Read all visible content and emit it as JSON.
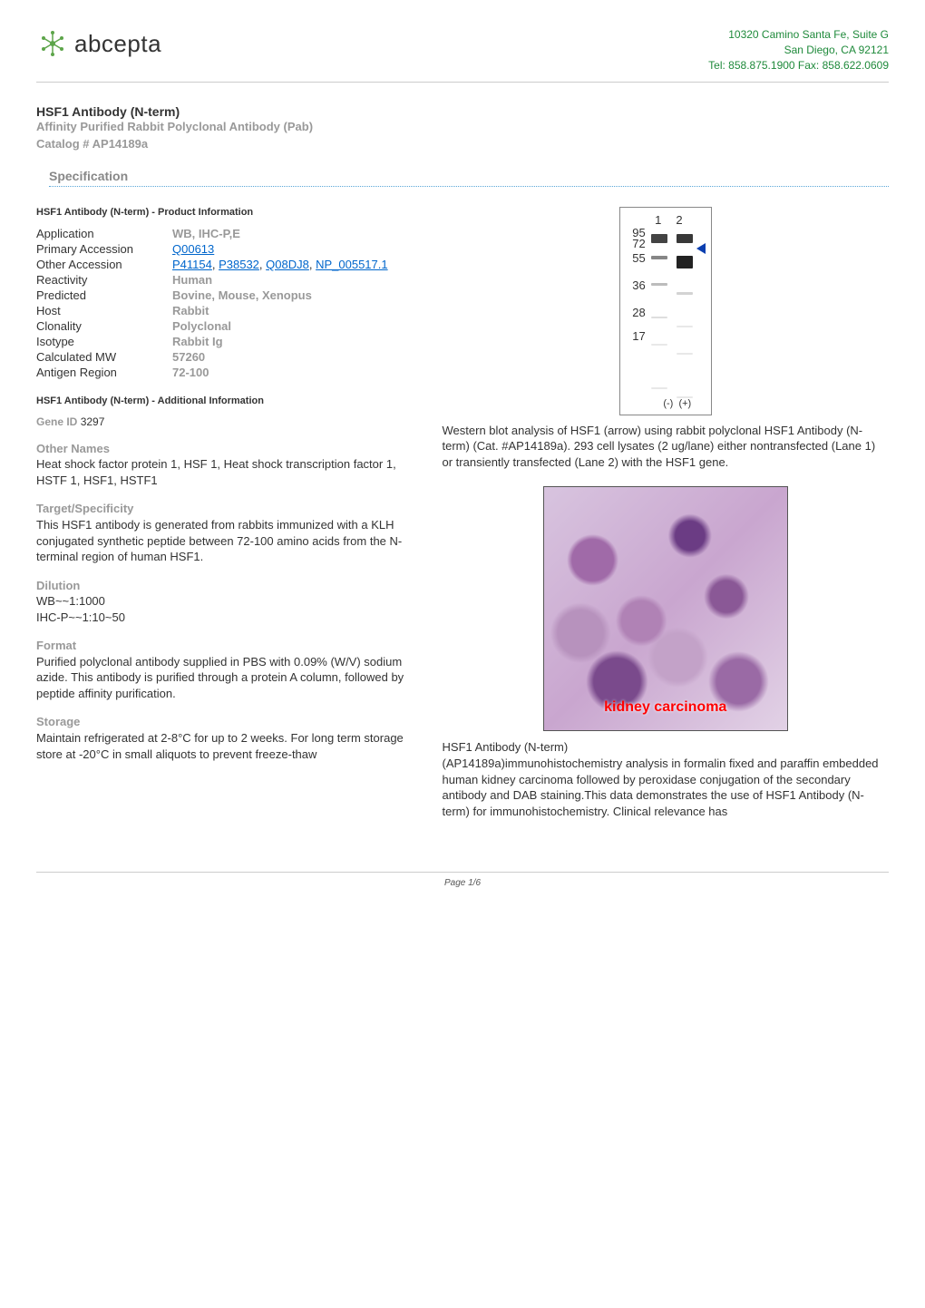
{
  "company": {
    "logo_text": "abcepta",
    "address_line1": "10320 Camino Santa Fe, Suite G",
    "address_line2": "San Diego, CA 92121",
    "address_line3": "Tel: 858.875.1900 Fax: 858.622.0609",
    "address_color": "#1f8a3b",
    "logo_color": "#5da54a"
  },
  "title": {
    "product_name": "HSF1 Antibody (N-term)",
    "subtype": "Affinity Purified Rabbit Polyclonal Antibody (Pab)",
    "catalog": "Catalog # AP14189a"
  },
  "section_heading": "Specification",
  "product_info_heading": "HSF1 Antibody (N-term) - Product Information",
  "product_info": {
    "Application": "WB, IHC-P,E",
    "Primary Accession": "Q00613",
    "Other Accession": [
      "P41154",
      "P38532",
      "Q08DJ8",
      "NP_005517.1"
    ],
    "Reactivity": "Human",
    "Predicted": "Bovine, Mouse, Xenopus",
    "Host": "Rabbit",
    "Clonality": "Polyclonal",
    "Isotype": "Rabbit Ig",
    "Calculated MW": "57260",
    "Antigen Region": "72-100"
  },
  "additional_info_heading": "HSF1 Antibody (N-term) - Additional Information",
  "gene": {
    "label": "Gene ID",
    "value": "3297"
  },
  "blocks": {
    "other_names": {
      "label": "Other Names",
      "body": "Heat shock factor protein 1, HSF 1, Heat shock transcription factor 1, HSTF 1, HSF1, HSTF1"
    },
    "target_spec": {
      "label": "Target/Specificity",
      "body": "This HSF1 antibody is generated from rabbits immunized with a KLH conjugated synthetic peptide between 72-100 amino acids from the N-terminal region of human HSF1."
    },
    "dilution": {
      "label": "Dilution",
      "lines": [
        "WB~~1:1000",
        "IHC-P~~1:10~50"
      ]
    },
    "format": {
      "label": "Format",
      "body": "Purified polyclonal antibody supplied in PBS with 0.09% (W/V) sodium azide. This antibody is purified through a protein A column, followed by peptide affinity purification."
    },
    "storage": {
      "label": "Storage",
      "body": "Maintain refrigerated at 2-8°C for up to 2 weeks. For long term storage store at -20°C in small aliquots to prevent freeze-thaw"
    }
  },
  "wb_figure": {
    "lane_numbers": [
      "1",
      "2"
    ],
    "mw_markers": [
      "95",
      "72",
      "55",
      "36",
      "28",
      "17"
    ],
    "polarity": [
      "(-)",
      "(+)"
    ],
    "lanes": [
      {
        "bands": [
          {
            "h": 10,
            "op": 0.85
          },
          {
            "h": 4,
            "op": 0.55
          },
          {
            "h": 3,
            "op": 0.3
          },
          {
            "h": 2,
            "op": 0.15
          },
          {
            "h": 2,
            "op": 0.1
          },
          {
            "h": 2,
            "op": 0.1
          }
        ]
      },
      {
        "bands": [
          {
            "h": 10,
            "op": 0.9
          },
          {
            "h": 14,
            "op": 1.0,
            "arrow": true
          },
          {
            "h": 3,
            "op": 0.2
          },
          {
            "h": 2,
            "op": 0.1
          },
          {
            "h": 2,
            "op": 0.1
          },
          {
            "h": 2,
            "op": 0.1
          }
        ]
      }
    ],
    "caption": " Western blot analysis of HSF1 (arrow) using rabbit polyclonal HSF1 Antibody (N-term) (Cat. #AP14189a). 293 cell lysates (2 ug/lane) either nontransfected (Lane 1) or transiently transfected (Lane 2) with the HSF1 gene."
  },
  "ihc_figure": {
    "overlay_text": "kidney carcinoma",
    "overlay_color": "#ff0000",
    "caption_title": " HSF1 Antibody (N-term)",
    "caption_body": "(AP14189a)immunohistochemistry analysis in formalin fixed and paraffin embedded human kidney carcinoma followed by peroxidase conjugation of the secondary antibody and DAB staining.This data demonstrates the use of HSF1 Antibody (N-term) for immunohistochemistry. Clinical relevance has"
  },
  "footer": "Page 1/6",
  "style": {
    "link_color": "#0066cc",
    "gray_text": "#999999",
    "body_text": "#333333",
    "dotted_rule": "#5aa6d8"
  }
}
